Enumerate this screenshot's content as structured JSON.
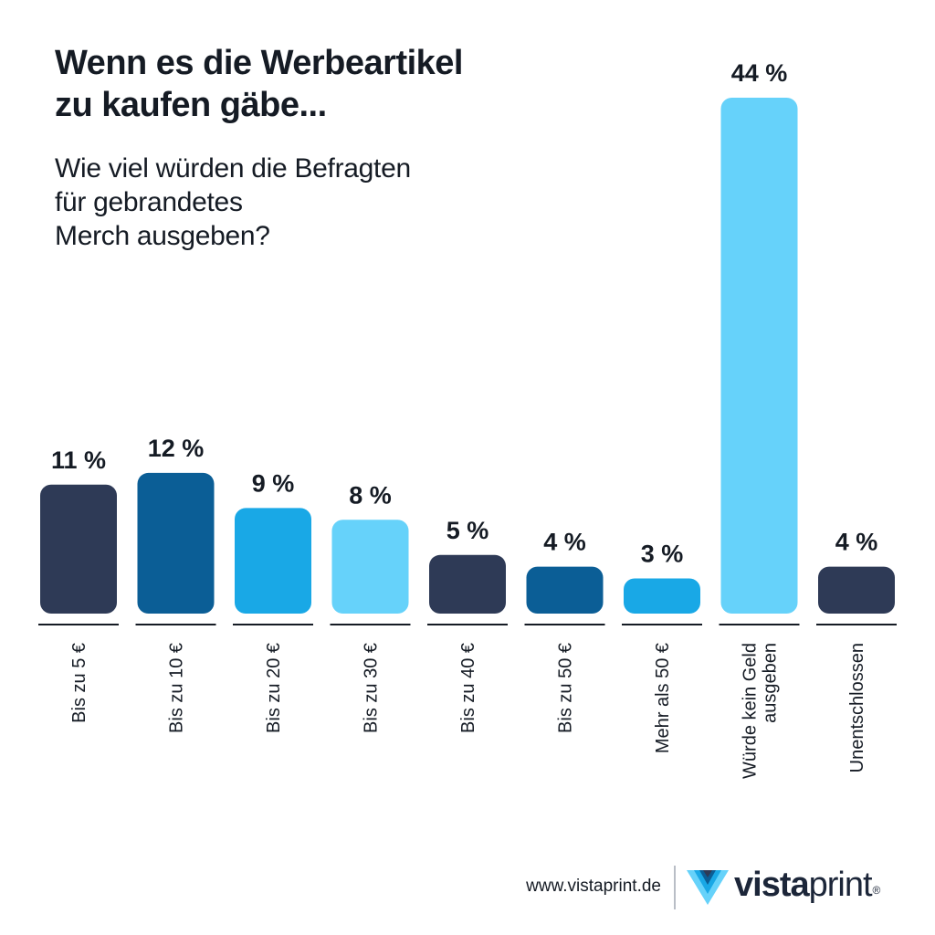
{
  "header": {
    "title_lines": [
      "Wenn es die Werbeartikel",
      "zu kaufen gäbe..."
    ],
    "subtitle_lines": [
      "Wie viel würden die Befragten",
      "für gebrandetes",
      "Merch ausgeben?"
    ]
  },
  "chart_data": {
    "type": "bar",
    "title": "Wenn es die Werbeartikel zu kaufen gäbe... Wie viel würden die Befragten für gebrandetes Merch ausgeben?",
    "xlabel": "",
    "ylabel": "",
    "ylim": [
      0,
      44
    ],
    "categories": [
      [
        "Bis zu 5 €"
      ],
      [
        "Bis zu 10 €"
      ],
      [
        "Bis zu 20 €"
      ],
      [
        "Bis zu 30 €"
      ],
      [
        "Bis zu 40 €"
      ],
      [
        "Bis zu 50 €"
      ],
      [
        "Mehr als 50 €"
      ],
      [
        "Würde kein Geld",
        "ausgeben"
      ],
      [
        "Unentschlossen"
      ]
    ],
    "values": [
      11,
      12,
      9,
      8,
      5,
      4,
      3,
      44,
      4
    ],
    "labels": [
      "11 %",
      "12 %",
      "9 %",
      "8 %",
      "5 %",
      "4 %",
      "3 %",
      "44 %",
      "4 %"
    ],
    "colors": [
      "#2e3a56",
      "#0b5e96",
      "#19a8e6",
      "#66d2fa",
      "#2e3a56",
      "#0b5e96",
      "#19a8e6",
      "#66d2fa",
      "#2e3a56"
    ],
    "grid": false,
    "legend": "none"
  },
  "footer": {
    "url": "www.vistaprint.de",
    "logo_bold": "vista",
    "logo_light": "print",
    "logo_reg": "®",
    "logo_colors": [
      "#66d2fa",
      "#19a8e6",
      "#0b5e96",
      "#2e3a56"
    ]
  }
}
